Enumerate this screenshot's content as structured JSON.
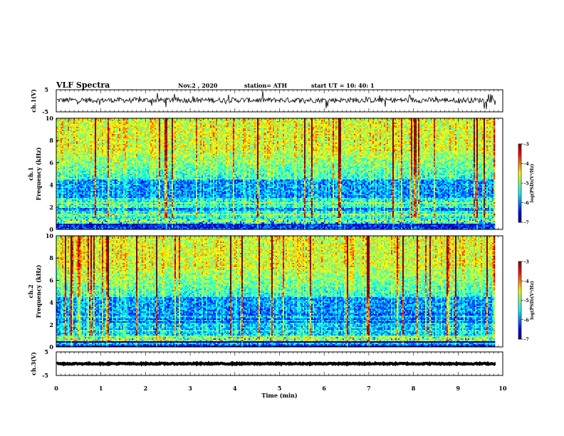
{
  "header": {
    "title": "VLF Spectra",
    "date": "Nov.2  , 2020",
    "station": "station= ATH",
    "start": "start  UT  =   10: 40: 1"
  },
  "chart_data": {
    "type": "heatmap",
    "xlabel": "Time  (min)",
    "xlim": [
      0,
      10
    ],
    "x_ticks": [
      "0",
      "1",
      "2",
      "3",
      "4",
      "5",
      "6",
      "7",
      "8",
      "9",
      "10"
    ],
    "data_end_min": 9.85,
    "panels": [
      {
        "id": "ch1-waveform",
        "kind": "line",
        "ylabel": "ch.1(V)",
        "ylim": [
          -5,
          5
        ],
        "y_ticks": [
          "5",
          "-5"
        ],
        "baseline_v": 0.3,
        "noise_v": 1.2
      },
      {
        "id": "ch1-spectrogram",
        "kind": "heatmap",
        "ylabel_line1": "ch.1",
        "ylabel_line2": "Frequency  (kHz)",
        "ylim": [
          0,
          10
        ],
        "y_ticks": [
          "0",
          "2",
          "4",
          "6",
          "8",
          "10"
        ],
        "colorbar": {
          "label": "log(PSD)(V²/Hz)",
          "range": [
            -7,
            -3
          ],
          "ticks": [
            "-3",
            "-4",
            "-5",
            "-6",
            "-7"
          ]
        }
      },
      {
        "id": "ch2-spectrogram",
        "kind": "heatmap",
        "ylabel_line1": "ch.2",
        "ylabel_line2": "Frequency  (kHz)",
        "ylim": [
          0,
          10
        ],
        "y_ticks": [
          "0",
          "2",
          "4",
          "6",
          "8",
          "10"
        ],
        "colorbar": {
          "label": "log(PSD)(V²/Hz)",
          "range": [
            -7,
            -3
          ],
          "ticks": [
            "-3",
            "-4",
            "-5",
            "-6",
            "-7"
          ]
        }
      },
      {
        "id": "ch3-waveform",
        "kind": "line",
        "ylabel": "ch.3(V)",
        "ylim": [
          -5,
          5
        ],
        "y_ticks": [
          "5",
          "-5"
        ],
        "baseline_v": 0.0,
        "noise_v": 0.25
      }
    ]
  }
}
